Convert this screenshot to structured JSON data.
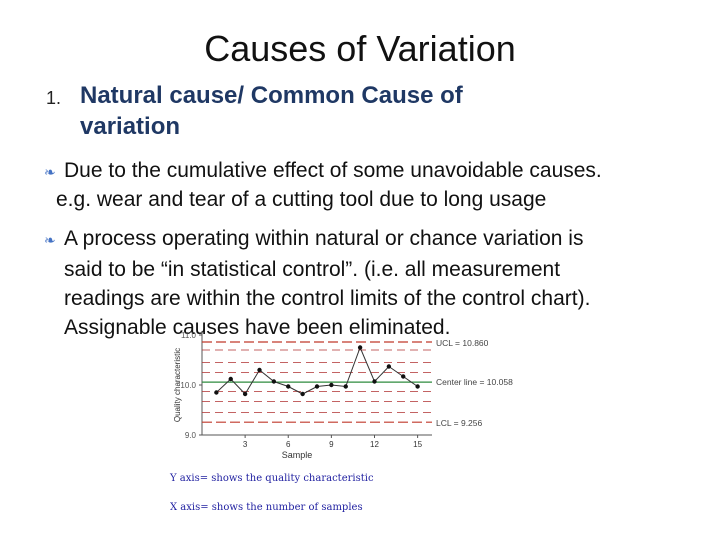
{
  "slide": {
    "title": "Causes of Variation",
    "list_number": "1.",
    "heading_line1": "Natural cause/ Common Cause of",
    "heading_line2": "variation",
    "bullet1_line1": "Due to the cumulative effect of some unavoidable causes.",
    "bullet1_line2": "e.g. wear and tear of a cutting tool due to long usage",
    "bullet2_lines": [
      "A process operating within natural or chance variation is",
      "said to be “in statistical control”. (i.e. all measurement",
      "readings are within the control limits of the control chart).",
      "Assignable causes have been eliminated."
    ],
    "bullet_icon": "leaf-bullet-icon",
    "accent_color": "#4472c4"
  },
  "chart_data": {
    "type": "line",
    "xlabel": "Sample",
    "ylabel": "Quality characteristic",
    "x_ticks": [
      "3",
      "6",
      "9",
      "12",
      "15"
    ],
    "y_ticks": [
      "11.0",
      "10.0",
      "9.0"
    ],
    "xlim": [
      0,
      16
    ],
    "ylim": [
      9.0,
      11.0
    ],
    "ucl": 10.86,
    "center": 10.058,
    "lcl": 9.256,
    "ucl_label": "UCL = 10.860",
    "center_label": "Center line = 10.058",
    "lcl_label": "LCL = 9.256",
    "series": [
      {
        "x": [
          1,
          2,
          3,
          4,
          5,
          6,
          7,
          8,
          9,
          10,
          11,
          12,
          13,
          14,
          15
        ],
        "values": [
          9.85,
          10.12,
          9.82,
          10.3,
          10.07,
          9.97,
          9.82,
          9.97,
          10.0,
          9.97,
          10.75,
          10.07,
          10.37,
          10.17,
          9.97
        ]
      }
    ],
    "colors": {
      "center": "#2e8b3e",
      "limits": "#c0392b",
      "band": "#b03030",
      "data": "#333333"
    }
  },
  "notes": {
    "y_axis": "Y axis= shows the quality characteristic",
    "x_axis": "X axis= shows the number of samples"
  }
}
